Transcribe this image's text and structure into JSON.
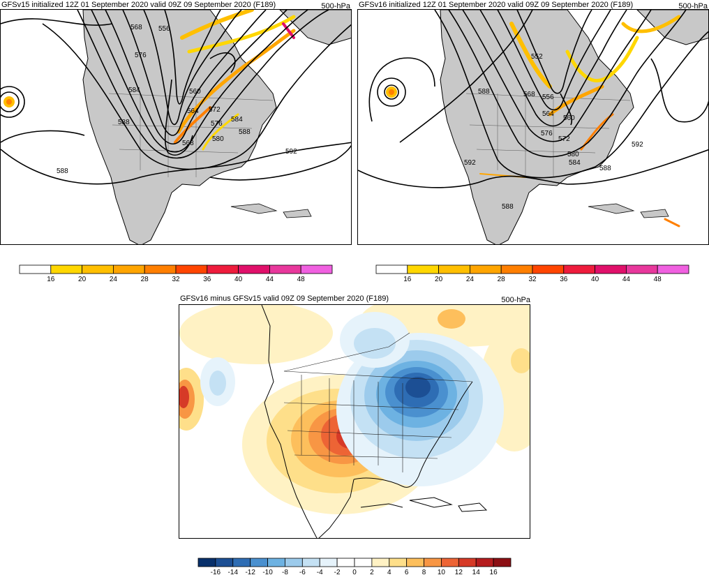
{
  "panels": {
    "top_left": {
      "title": "GFSv15 initialized 12Z 01 September 2020 valid 09Z 09 September 2020 (F189)",
      "level": "500-hPa",
      "contour_labels": [
        "568",
        "556",
        "576",
        "584",
        "560",
        "588",
        "564",
        "572",
        "576",
        "584",
        "588",
        "568",
        "580",
        "592",
        "588"
      ]
    },
    "top_right": {
      "title": "GFSv16 initialized 12Z 01 September 2020 valid 09Z 09 September 2020 (F189)",
      "level": "500-hPa",
      "contour_labels": [
        "552",
        "588",
        "568",
        "556",
        "564",
        "560",
        "576",
        "572",
        "592",
        "580",
        "584",
        "588",
        "592",
        "588"
      ]
    },
    "bottom": {
      "title": "GFSv16 minus GFSv15 valid 09Z 09 September 2020 (F189)",
      "level": "500-hPa"
    }
  },
  "colorbars": {
    "wind": {
      "ticks": [
        "16",
        "20",
        "24",
        "28",
        "32",
        "36",
        "40",
        "44",
        "48"
      ],
      "colors": [
        "#ffffff",
        "#ffd700",
        "#ffbf00",
        "#ffa500",
        "#ff7f00",
        "#ff4500",
        "#ee1c3c",
        "#e0106a",
        "#e8389c",
        "#f060e0"
      ]
    },
    "diff": {
      "ticks": [
        "-16",
        "-14",
        "-12",
        "-10",
        "-8",
        "-6",
        "-4",
        "-2",
        "0",
        "2",
        "4",
        "6",
        "8",
        "10",
        "12",
        "14",
        "16"
      ],
      "colors": [
        "#08306b",
        "#1c4f94",
        "#2e6db4",
        "#4a90cf",
        "#6db2e2",
        "#9ccbec",
        "#c4e1f4",
        "#e6f3fb",
        "#ffffff",
        "#ffffff",
        "#fff2c4",
        "#fedf8a",
        "#fdbf5c",
        "#f89644",
        "#ed6435",
        "#d63a27",
        "#b51c1e",
        "#8c0f14"
      ]
    }
  }
}
